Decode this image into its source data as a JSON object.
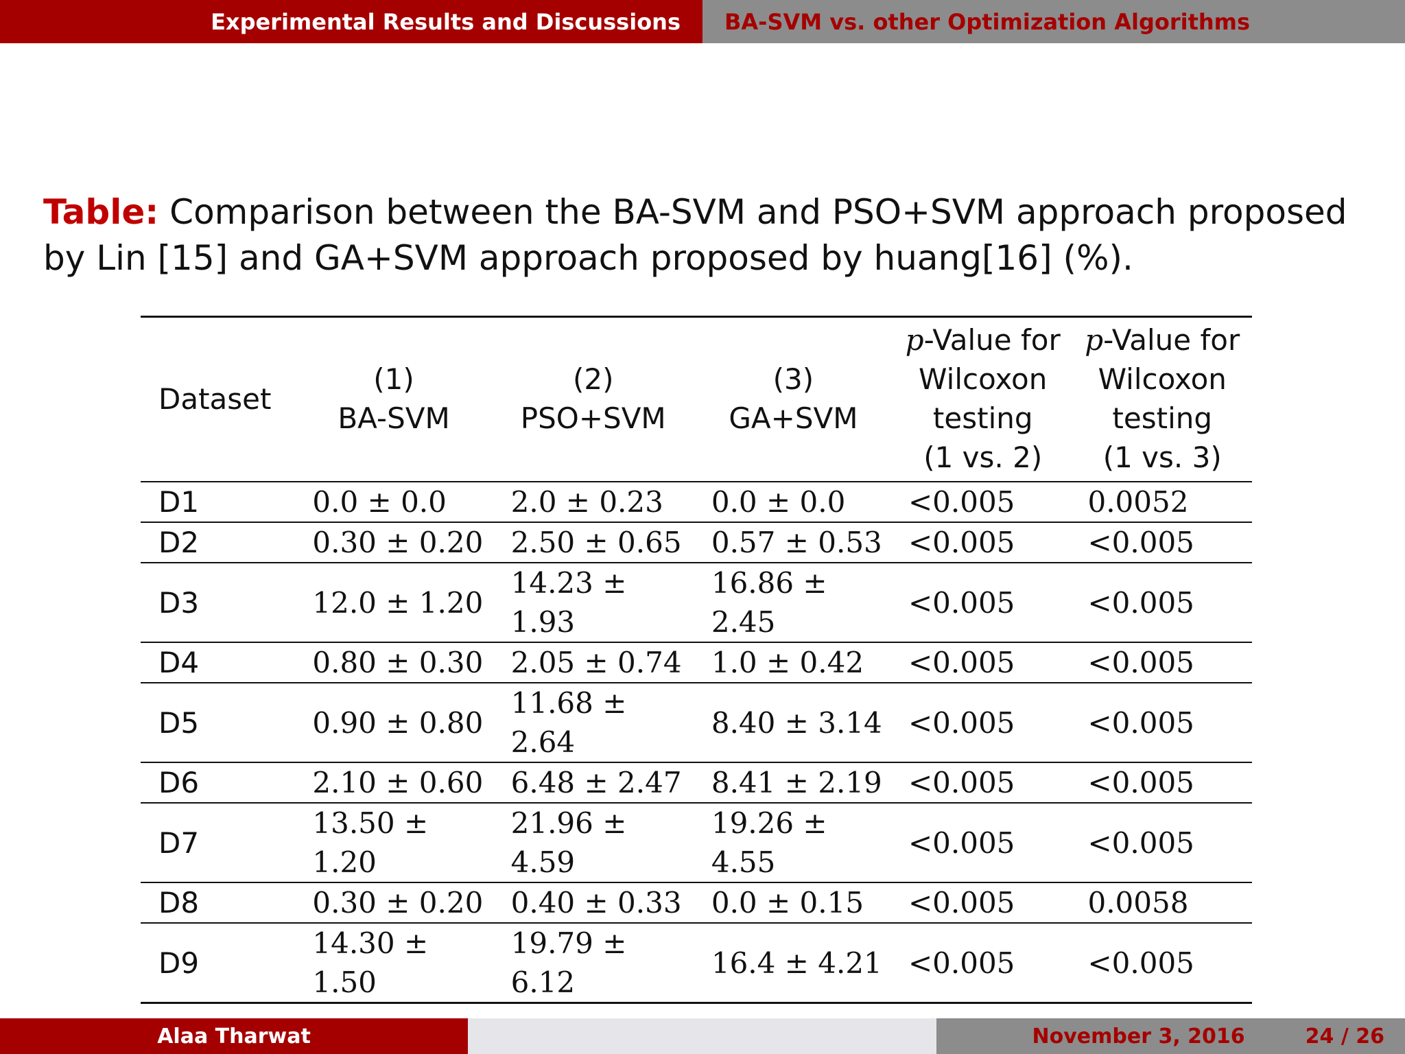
{
  "header": {
    "section": "Experimental Results and Discussions",
    "subsection": "BA-SVM vs. other Optimization Algorithms"
  },
  "caption": {
    "label": "Table:",
    "text": "Comparison between the BA-SVM and PSO+SVM approach proposed by Lin [15] and GA+SVM approach proposed by huang[16] (%)."
  },
  "table": {
    "headers": {
      "dataset": "Dataset",
      "col1_num": "(1)",
      "col1_name": "BA-SVM",
      "col2_num": "(2)",
      "col2_name": "PSO+SVM",
      "col3_num": "(3)",
      "col3_name": "GA+SVM",
      "p_symbol": "p",
      "p_rest": "-Value for",
      "p_line2": "Wilcoxon",
      "p_line3": "testing",
      "p1_cmp": "(1 vs. 2)",
      "p2_cmp": "(1 vs. 3)"
    },
    "rows": [
      {
        "dataset": "D1",
        "ba": "0.0 ± 0.0",
        "pso": "2.0 ± 0.23",
        "ga": "0.0 ± 0.0",
        "p12": "<0.005",
        "p13": "0.0052"
      },
      {
        "dataset": "D2",
        "ba": "0.30 ± 0.20",
        "pso": "2.50 ± 0.65",
        "ga": "0.57 ± 0.53",
        "p12": "<0.005",
        "p13": "<0.005"
      },
      {
        "dataset": "D3",
        "ba": "12.0 ± 1.20",
        "pso": "14.23 ± 1.93",
        "ga": "16.86 ± 2.45",
        "p12": "<0.005",
        "p13": "<0.005"
      },
      {
        "dataset": "D4",
        "ba": "0.80 ± 0.30",
        "pso": "2.05 ± 0.74",
        "ga": "1.0 ± 0.42",
        "p12": "<0.005",
        "p13": "<0.005"
      },
      {
        "dataset": "D5",
        "ba": "0.90 ± 0.80",
        "pso": "11.68 ± 2.64",
        "ga": "8.40 ± 3.14",
        "p12": "<0.005",
        "p13": "<0.005"
      },
      {
        "dataset": "D6",
        "ba": "2.10 ± 0.60",
        "pso": "6.48 ± 2.47",
        "ga": "8.41 ± 2.19",
        "p12": "<0.005",
        "p13": "<0.005"
      },
      {
        "dataset": "D7",
        "ba": "13.50 ± 1.20",
        "pso": "21.96 ± 4.59",
        "ga": "19.26 ± 4.55",
        "p12": "<0.005",
        "p13": "<0.005"
      },
      {
        "dataset": "D8",
        "ba": "0.30 ± 0.20",
        "pso": "0.40 ± 0.33",
        "ga": "0.0 ± 0.15",
        "p12": "<0.005",
        "p13": "0.0058"
      },
      {
        "dataset": "D9",
        "ba": "14.30 ± 1.50",
        "pso": "19.79 ± 6.12",
        "ga": "16.4 ± 4.21",
        "p12": "<0.005",
        "p13": "<0.005"
      }
    ]
  },
  "footer": {
    "author": "Alaa Tharwat",
    "date": "November 3, 2016",
    "page": "24 / 26"
  },
  "colors": {
    "accent_red": "#a50000",
    "caption_label_red": "#c00000",
    "gray_bar": "#8c8c8c",
    "light_bar": "#e6e6ea"
  }
}
